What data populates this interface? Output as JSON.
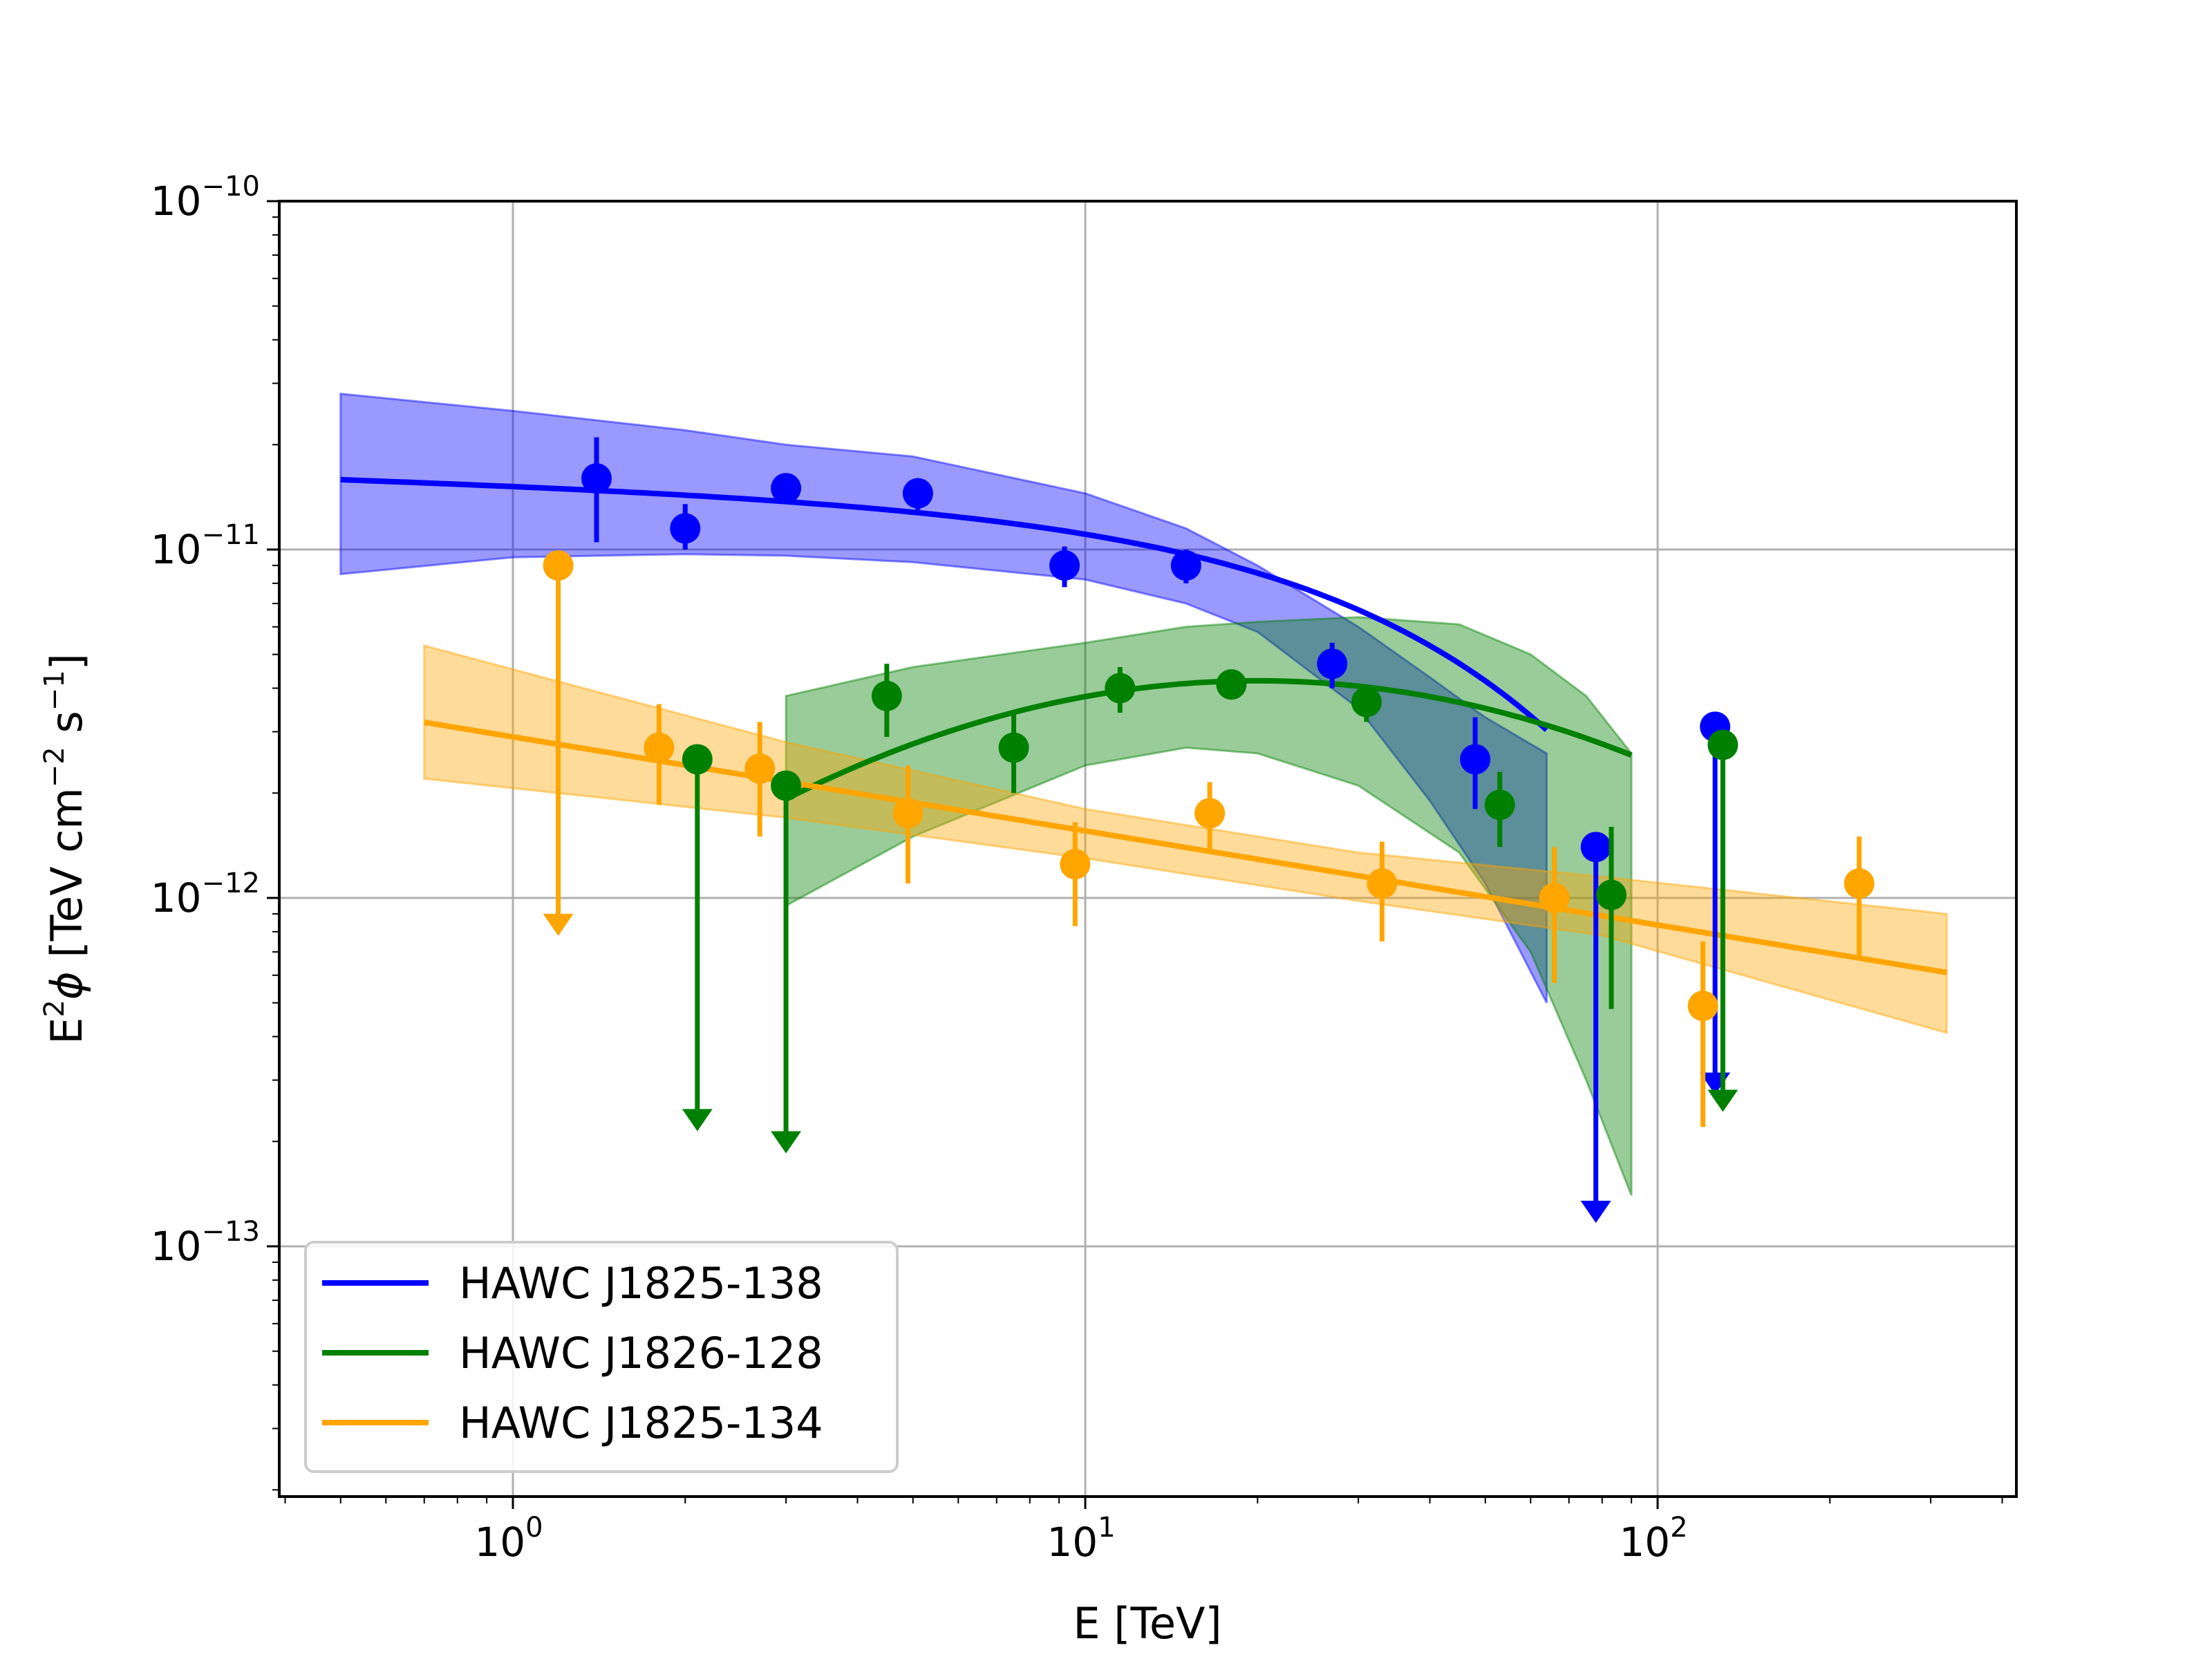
{
  "chart_data": {
    "type": "scatter",
    "title": "",
    "xlabel": "E [TeV]",
    "ylabel_text": "E",
    "ylabel_exp": "2",
    "ylabel_symbol": "ϕ",
    "ylabel_units_a": " [TeV cm",
    "ylabel_units_exp1": "−2",
    "ylabel_units_b": " s",
    "ylabel_units_exp2": "−1",
    "ylabel_units_c": "]",
    "xscale": "log",
    "yscale": "log",
    "xlim": [
      0.4,
      430
    ],
    "ylim": [
      2e-14,
      1e-10
    ],
    "grid": true,
    "legend_position": "lower-left",
    "x_ticks": [
      {
        "value": 1,
        "base": "10",
        "exp": "0"
      },
      {
        "value": 10,
        "base": "10",
        "exp": "1"
      },
      {
        "value": 100,
        "base": "10",
        "exp": "2"
      }
    ],
    "y_ticks": [
      {
        "value": 1e-13,
        "base": "10",
        "exp": "−13"
      },
      {
        "value": 1e-12,
        "base": "10",
        "exp": "−12"
      },
      {
        "value": 1e-11,
        "base": "10",
        "exp": "−11"
      },
      {
        "value": 1e-10,
        "base": "10",
        "exp": "−10"
      }
    ],
    "series": [
      {
        "name": "HAWC J1825-138",
        "color": "#0000ff",
        "fit": {
          "model": "power-law-exp-cutoff",
          "N0_at_1TeV": 1.55e-11,
          "index": 2.05,
          "cutoff_TeV": 45,
          "x_range": [
            0.5,
            64
          ]
        },
        "band": {
          "x": [
            0.5,
            1,
            2,
            3,
            5,
            10,
            15,
            20,
            30,
            40,
            50,
            64
          ],
          "upper": [
            2.8e-11,
            2.5e-11,
            2.2e-11,
            2e-11,
            1.85e-11,
            1.45e-11,
            1.15e-11,
            9e-12,
            6e-12,
            4.3e-12,
            3.3e-12,
            2.6e-12
          ],
          "lower": [
            8.5e-12,
            9.5e-12,
            9.7e-12,
            9.6e-12,
            9.2e-12,
            8.2e-12,
            7e-12,
            5.8e-12,
            3.5e-12,
            1.9e-12,
            1.1e-12,
            5e-13
          ]
        },
        "points": [
          {
            "x": 1.4,
            "y": 1.6e-11,
            "yerr_low": 1.05e-11,
            "yerr_high": 2.1e-11
          },
          {
            "x": 2.0,
            "y": 1.15e-11,
            "yerr_low": 1e-11,
            "yerr_high": 1.35e-11
          },
          {
            "x": 3.0,
            "y": 1.5e-11,
            "yerr_low": 1.35e-11,
            "yerr_high": 1.65e-11
          },
          {
            "x": 5.1,
            "y": 1.45e-11,
            "yerr_low": 1.3e-11,
            "yerr_high": 1.6e-11
          },
          {
            "x": 9.2,
            "y": 9e-12,
            "yerr_low": 7.8e-12,
            "yerr_high": 1.02e-11
          },
          {
            "x": 15,
            "y": 9e-12,
            "yerr_low": 8e-12,
            "yerr_high": 1e-11
          },
          {
            "x": 27,
            "y": 4.7e-12,
            "yerr_low": 4e-12,
            "yerr_high": 5.4e-12
          },
          {
            "x": 48,
            "y": 2.5e-12,
            "yerr_low": 1.8e-12,
            "yerr_high": 3.3e-12
          },
          {
            "x": 78,
            "y": 1.4e-12,
            "upper_limit": true,
            "arrow_to": 1.2e-13
          },
          {
            "x": 126,
            "y": 3.1e-12,
            "upper_limit": true,
            "arrow_to": 2.8e-13
          }
        ]
      },
      {
        "name": "HAWC J1826-128",
        "color": "#008000",
        "fit": {
          "model": "log-parabola",
          "peak_E_TeV": 20,
          "peak_flux": 4.2e-12,
          "curvature": 0.5,
          "x_range": [
            3,
            90
          ]
        },
        "band": {
          "x": [
            3,
            5,
            10,
            15,
            20,
            30,
            45,
            60,
            75,
            90
          ],
          "upper": [
            3.8e-12,
            4.6e-12,
            5.4e-12,
            6e-12,
            6.2e-12,
            6.4e-12,
            6.1e-12,
            5e-12,
            3.8e-12,
            2.6e-12
          ],
          "lower": [
            9.5e-13,
            1.5e-12,
            2.4e-12,
            2.7e-12,
            2.6e-12,
            2.1e-12,
            1.35e-12,
            7e-13,
            3e-13,
            1.4e-13
          ]
        },
        "points": [
          {
            "x": 2.1,
            "y": 2.5e-12,
            "upper_limit": true,
            "arrow_to": 2.2e-13
          },
          {
            "x": 3.0,
            "y": 2.1e-12,
            "upper_limit": true,
            "arrow_to": 1.9e-13
          },
          {
            "x": 4.5,
            "y": 3.8e-12,
            "yerr_low": 2.9e-12,
            "yerr_high": 4.7e-12
          },
          {
            "x": 7.5,
            "y": 2.7e-12,
            "yerr_low": 2e-12,
            "yerr_high": 3.4e-12
          },
          {
            "x": 11.5,
            "y": 4e-12,
            "yerr_low": 3.4e-12,
            "yerr_high": 4.6e-12
          },
          {
            "x": 18,
            "y": 4.1e-12,
            "yerr_low": 3.8e-12,
            "yerr_high": 4.5e-12
          },
          {
            "x": 31,
            "y": 3.65e-12,
            "yerr_low": 3.2e-12,
            "yerr_high": 4.1e-12
          },
          {
            "x": 53,
            "y": 1.85e-12,
            "yerr_low": 1.4e-12,
            "yerr_high": 2.3e-12
          },
          {
            "x": 83,
            "y": 1.02e-12,
            "yerr_low": 4.8e-13,
            "yerr_high": 1.6e-12
          },
          {
            "x": 130,
            "y": 2.75e-12,
            "upper_limit": true,
            "arrow_to": 2.5e-13
          }
        ]
      },
      {
        "name": "HAWC J1825-134",
        "color": "#ffa500",
        "fit": {
          "model": "power-law",
          "N0_at_1TeV": 2.9e-12,
          "index": 2.27,
          "x_range": [
            0.7,
            320
          ]
        },
        "band": {
          "x": [
            0.7,
            3,
            10,
            30,
            80,
            320
          ],
          "upper": [
            5.3e-12,
            2.8e-12,
            1.8e-12,
            1.35e-12,
            1.15e-12,
            9e-13
          ],
          "lower": [
            2.2e-12,
            1.7e-12,
            1.3e-12,
            9.8e-13,
            7.8e-13,
            4.1e-13
          ]
        },
        "points": [
          {
            "x": 1.2,
            "y": 9e-12,
            "upper_limit": true,
            "arrow_to": 8e-13
          },
          {
            "x": 1.8,
            "y": 2.7e-12,
            "yerr_low": 1.85e-12,
            "yerr_high": 3.6e-12
          },
          {
            "x": 2.7,
            "y": 2.35e-12,
            "yerr_low": 1.5e-12,
            "yerr_high": 3.2e-12
          },
          {
            "x": 4.9,
            "y": 1.75e-12,
            "yerr_low": 1.1e-12,
            "yerr_high": 2.4e-12
          },
          {
            "x": 9.6,
            "y": 1.25e-12,
            "yerr_low": 8.3e-13,
            "yerr_high": 1.65e-12
          },
          {
            "x": 16.5,
            "y": 1.75e-12,
            "yerr_low": 1.35e-12,
            "yerr_high": 2.15e-12
          },
          {
            "x": 33,
            "y": 1.1e-12,
            "yerr_low": 7.5e-13,
            "yerr_high": 1.45e-12
          },
          {
            "x": 66,
            "y": 1e-12,
            "yerr_low": 5.7e-13,
            "yerr_high": 1.4e-12
          },
          {
            "x": 120,
            "y": 4.9e-13,
            "yerr_low": 2.2e-13,
            "yerr_high": 7.5e-13
          },
          {
            "x": 225,
            "y": 1.1e-12,
            "yerr_low": 6.8e-13,
            "yerr_high": 1.5e-12
          }
        ]
      }
    ]
  }
}
